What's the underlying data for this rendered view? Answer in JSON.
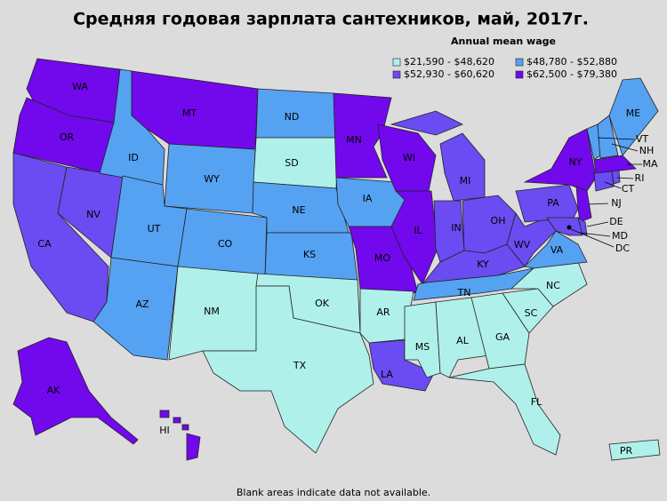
{
  "title": "Средняя годовая зарплата сантехников, май, 2017г.",
  "legend": {
    "title": "Annual mean wage",
    "items": [
      {
        "label": "$21,590 - $48,620",
        "color": "#b0f0ea"
      },
      {
        "label": "$48,780 - $52,880",
        "color": "#55a2f2"
      },
      {
        "label": "$52,930 - $60,620",
        "color": "#6a4cf2"
      },
      {
        "label": "$62,500 - $79,380",
        "color": "#7208ec"
      }
    ]
  },
  "states": [
    {
      "label": "WA",
      "class": 3
    },
    {
      "label": "OR",
      "class": 3
    },
    {
      "label": "CA",
      "class": 2
    },
    {
      "label": "NV",
      "class": 2
    },
    {
      "label": "ID",
      "class": 1
    },
    {
      "label": "MT",
      "class": 3
    },
    {
      "label": "WY",
      "class": 1
    },
    {
      "label": "UT",
      "class": 1
    },
    {
      "label": "AZ",
      "class": 1
    },
    {
      "label": "CO",
      "class": 1
    },
    {
      "label": "NM",
      "class": 0
    },
    {
      "label": "ND",
      "class": 1
    },
    {
      "label": "SD",
      "class": 0
    },
    {
      "label": "NE",
      "class": 1
    },
    {
      "label": "KS",
      "class": 1
    },
    {
      "label": "OK",
      "class": 0
    },
    {
      "label": "TX",
      "class": 0
    },
    {
      "label": "MN",
      "class": 3
    },
    {
      "label": "IA",
      "class": 1
    },
    {
      "label": "MO",
      "class": 3
    },
    {
      "label": "AR",
      "class": 0
    },
    {
      "label": "LA",
      "class": 2
    },
    {
      "label": "WI",
      "class": 3
    },
    {
      "label": "IL",
      "class": 3
    },
    {
      "label": "MI",
      "class": 2
    },
    {
      "label": "IN",
      "class": 2
    },
    {
      "label": "OH",
      "class": 2
    },
    {
      "label": "KY",
      "class": 2
    },
    {
      "label": "TN",
      "class": 1
    },
    {
      "label": "MS",
      "class": 0
    },
    {
      "label": "AL",
      "class": 0
    },
    {
      "label": "GA",
      "class": 0
    },
    {
      "label": "FL",
      "class": 0
    },
    {
      "label": "SC",
      "class": 0
    },
    {
      "label": "NC",
      "class": 0
    },
    {
      "label": "VA",
      "class": 1
    },
    {
      "label": "WV",
      "class": 2
    },
    {
      "label": "PA",
      "class": 2
    },
    {
      "label": "NY",
      "class": 3
    },
    {
      "label": "NJ",
      "class": 3
    },
    {
      "label": "DE",
      "class": 2
    },
    {
      "label": "MD",
      "class": 2
    },
    {
      "label": "VT",
      "class": 1
    },
    {
      "label": "NH",
      "class": 1
    },
    {
      "label": "ME",
      "class": 1
    },
    {
      "label": "MA",
      "class": 3
    },
    {
      "label": "CT",
      "class": 2
    },
    {
      "label": "RI",
      "class": 2
    },
    {
      "label": "AK",
      "class": 3
    },
    {
      "label": "HI",
      "class": 3
    },
    {
      "label": "PR",
      "class": 0
    },
    {
      "label": "DC",
      "class": 3
    }
  ],
  "footnote": "Blank areas indicate data not available."
}
